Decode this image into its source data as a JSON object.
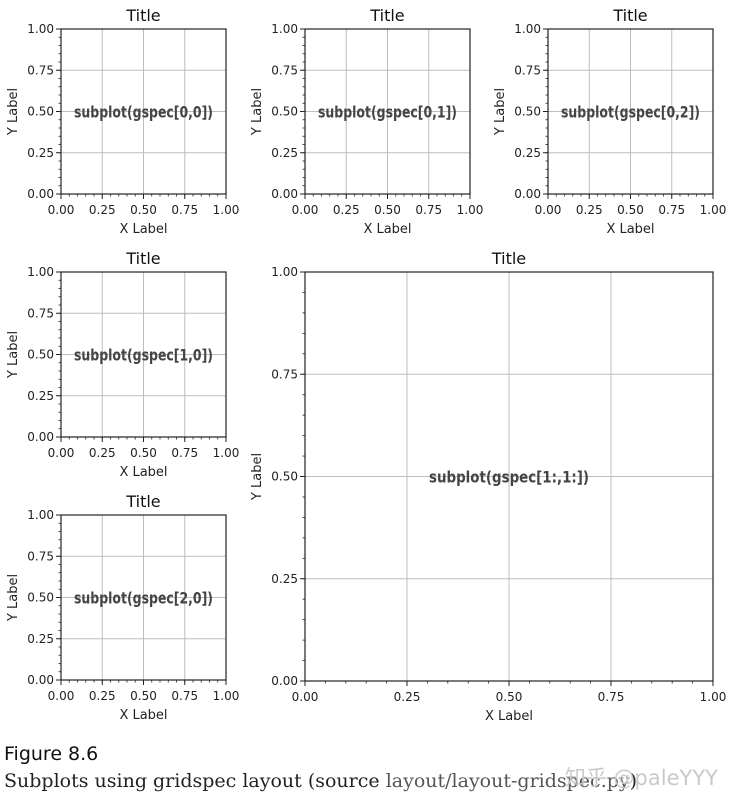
{
  "chart_data": [
    {
      "type": "line",
      "title": "Title",
      "xlabel": "X Label",
      "ylabel": "Y Label",
      "annotation": "subplot(gspec[0,0])",
      "xlim": [
        0,
        1
      ],
      "ylim": [
        0,
        1
      ],
      "xticks": [
        "0.00",
        "0.25",
        "0.50",
        "0.75",
        "1.00"
      ],
      "yticks": [
        "0.00",
        "0.25",
        "0.50",
        "0.75",
        "1.00"
      ],
      "grid": true
    },
    {
      "type": "line",
      "title": "Title",
      "xlabel": "X Label",
      "ylabel": "Y Label",
      "annotation": "subplot(gspec[0,1])",
      "xlim": [
        0,
        1
      ],
      "ylim": [
        0,
        1
      ],
      "xticks": [
        "0.00",
        "0.25",
        "0.50",
        "0.75",
        "1.00"
      ],
      "yticks": [
        "0.00",
        "0.25",
        "0.50",
        "0.75",
        "1.00"
      ],
      "grid": true
    },
    {
      "type": "line",
      "title": "Title",
      "xlabel": "X Label",
      "ylabel": "Y Label",
      "annotation": "subplot(gspec[0,2])",
      "xlim": [
        0,
        1
      ],
      "ylim": [
        0,
        1
      ],
      "xticks": [
        "0.00",
        "0.25",
        "0.50",
        "0.75",
        "1.00"
      ],
      "yticks": [
        "0.00",
        "0.25",
        "0.50",
        "0.75",
        "1.00"
      ],
      "grid": true
    },
    {
      "type": "line",
      "title": "Title",
      "xlabel": "X Label",
      "ylabel": "Y Label",
      "annotation": "subplot(gspec[1,0])",
      "xlim": [
        0,
        1
      ],
      "ylim": [
        0,
        1
      ],
      "xticks": [
        "0.00",
        "0.25",
        "0.50",
        "0.75",
        "1.00"
      ],
      "yticks": [
        "0.00",
        "0.25",
        "0.50",
        "0.75",
        "1.00"
      ],
      "grid": true
    },
    {
      "type": "line",
      "title": "Title",
      "xlabel": "X Label",
      "ylabel": "Y Label",
      "annotation": "subplot(gspec[1:,1:])",
      "xlim": [
        0,
        1
      ],
      "ylim": [
        0,
        1
      ],
      "xticks": [
        "0.00",
        "0.25",
        "0.50",
        "0.75",
        "1.00"
      ],
      "yticks": [
        "0.00",
        "0.25",
        "0.50",
        "0.75",
        "1.00"
      ],
      "grid": true
    },
    {
      "type": "line",
      "title": "Title",
      "xlabel": "X Label",
      "ylabel": "Y Label",
      "annotation": "subplot(gspec[2,0])",
      "xlim": [
        0,
        1
      ],
      "ylim": [
        0,
        1
      ],
      "xticks": [
        "0.00",
        "0.25",
        "0.50",
        "0.75",
        "1.00"
      ],
      "yticks": [
        "0.00",
        "0.25",
        "0.50",
        "0.75",
        "1.00"
      ],
      "grid": true
    }
  ],
  "caption": {
    "figure_number": "Figure 8.6",
    "text": "Subplots using gridspec layout (source ",
    "source": "layout/layout-gridspec.py",
    "closing": ")"
  },
  "watermark": "知乎 @paleYYY",
  "colors": {
    "grid": "#bdbdbd",
    "axes": "#222222",
    "annotation": "#444444"
  }
}
